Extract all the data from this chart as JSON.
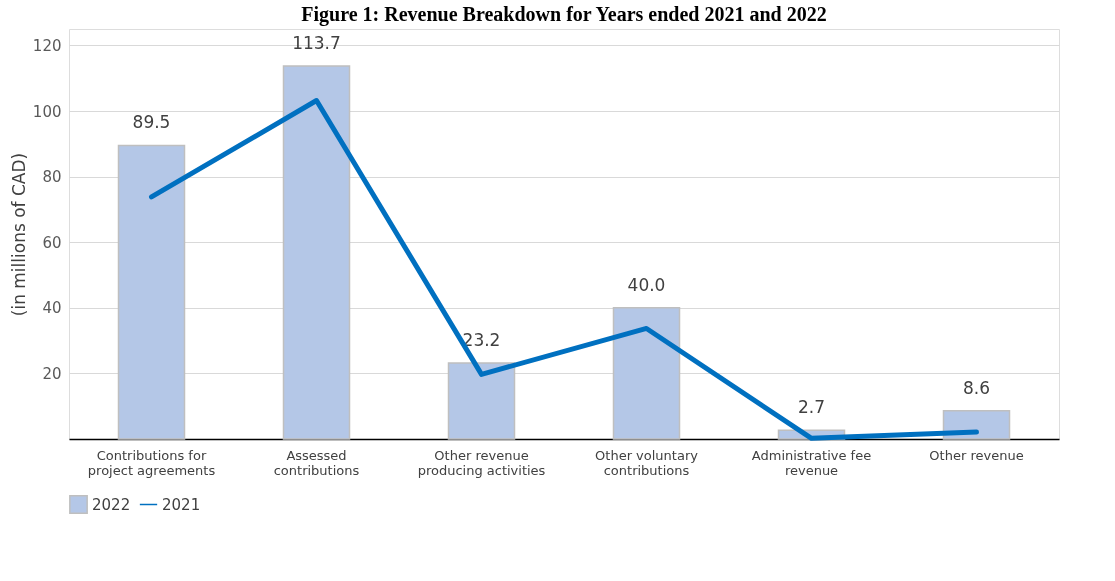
{
  "chart_data": {
    "type": "bar",
    "title": "Figure 1: Revenue Breakdown for Years ended 2021 and 2022",
    "ylabel": "(in millions of CAD)",
    "categories": [
      "Contributions for project agreements",
      "Assessed contributions",
      "Other revenue producing activities",
      "Other voluntary contributions",
      "Administrative fee revenue",
      "Other revenue"
    ],
    "series": [
      {
        "name": "2022",
        "color": "#b4c7e7",
        "values": [
          89.5,
          113.7,
          23.2,
          40.0,
          2.7,
          8.6
        ],
        "value_labels": [
          "89.5",
          "113.7",
          "23.2",
          "40.0",
          "2.7",
          "8.6"
        ]
      },
      {
        "name": "2021",
        "type": "line",
        "color": "#0070c0",
        "values": [
          73.8,
          103.2,
          19.7,
          33.7,
          0.2,
          2.1
        ]
      }
    ],
    "ylim": [
      0,
      125
    ],
    "yticks": [
      20,
      40,
      60,
      80,
      100,
      120
    ],
    "grid": "y",
    "legend": "bottom"
  }
}
